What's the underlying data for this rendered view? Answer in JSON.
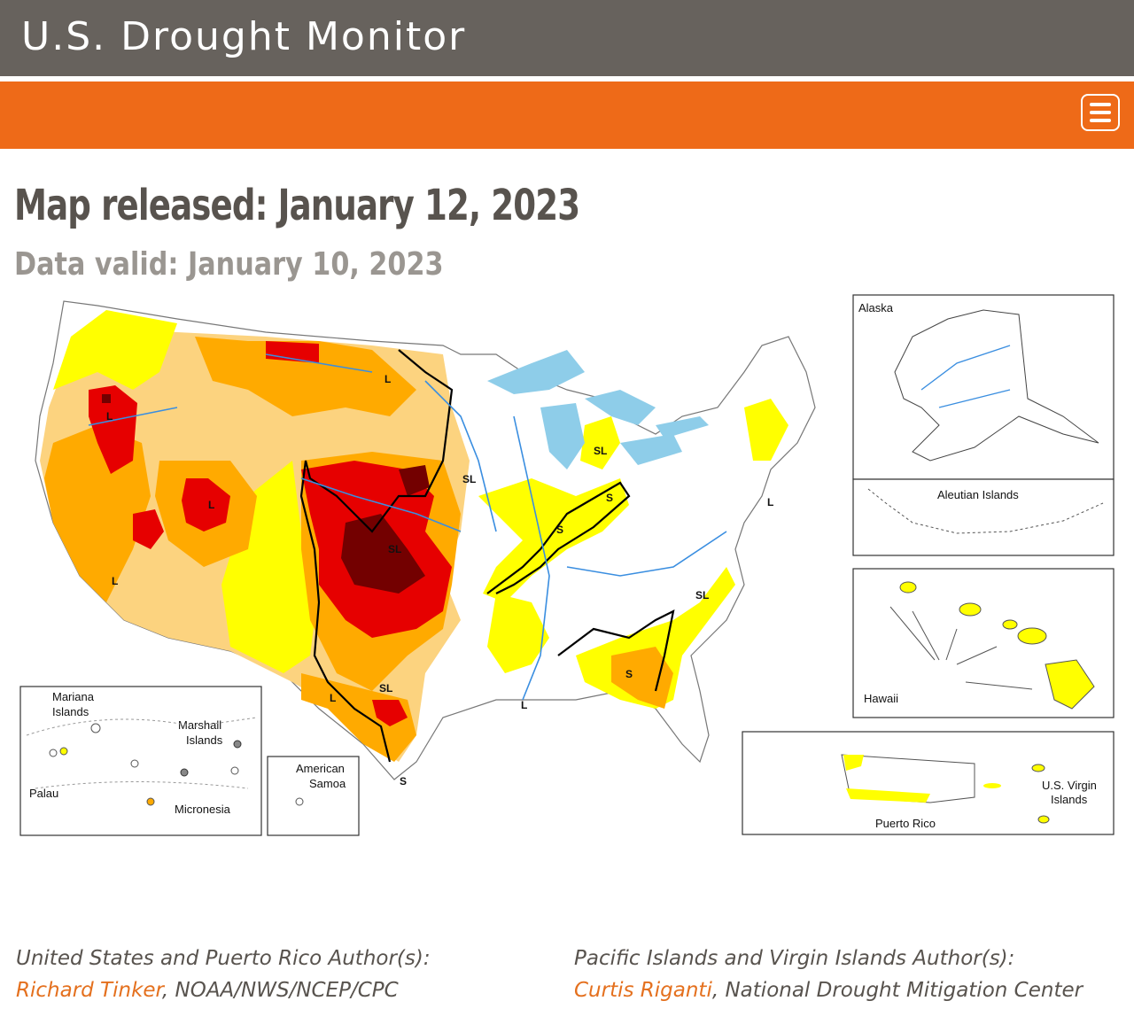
{
  "header": {
    "site_title": "U.S. Drought Monitor",
    "menu_icon": "hamburger-menu-icon"
  },
  "map_info": {
    "released": "Map released: January 12, 2023",
    "valid": "Data valid: January 10, 2023"
  },
  "insets": {
    "alaska": "Alaska",
    "aleutian": "Aleutian Islands",
    "hawaii": "Hawaii",
    "puerto_rico": "Puerto Rico",
    "usvi_line1": "U.S. Virgin",
    "usvi_line2": "Islands",
    "mariana_line1": "Mariana",
    "mariana_line2": "Islands",
    "marshall_line1": "Marshall",
    "marshall_line2": "Islands",
    "palau": "Palau",
    "micronesia": "Micronesia",
    "samoa_line1": "American",
    "samoa_line2": "Samoa"
  },
  "impact_labels": {
    "l": "L",
    "sl": "SL",
    "s": "S"
  },
  "colors": {
    "D0": "#ffff00",
    "D1": "#fcd37f",
    "D2": "#ffaa00",
    "D3": "#e60000",
    "D4": "#730000",
    "water": "#8ecde9",
    "header": "#67625d",
    "nav": "#ee6a18"
  },
  "authors": {
    "us": {
      "heading": "United States and Puerto Rico Author(s):",
      "name": "Richard Tinker",
      "affiliation": ", NOAA/NWS/NCEP/CPC"
    },
    "pacific": {
      "heading": "Pacific Islands and Virgin Islands Author(s):",
      "name": "Curtis Riganti",
      "affiliation": ", National Drought Mitigation Center"
    }
  }
}
